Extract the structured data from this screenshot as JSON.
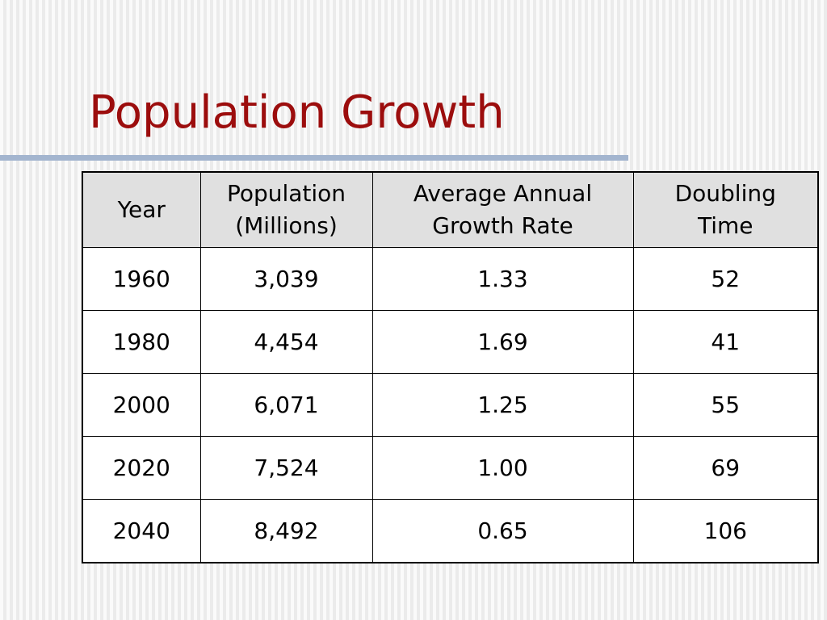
{
  "slide": {
    "title": "Population Growth"
  },
  "table": {
    "headers": [
      [
        "Year"
      ],
      [
        "Population",
        "(Millions)"
      ],
      [
        "Average Annual",
        "Growth Rate"
      ],
      [
        "Doubling",
        "Time"
      ]
    ],
    "rows": [
      [
        "1960",
        "3,039",
        "1.33",
        "52"
      ],
      [
        "1980",
        "4,454",
        "1.69",
        "41"
      ],
      [
        "2000",
        "6,071",
        "1.25",
        "55"
      ],
      [
        "2020",
        "7,524",
        "1.00",
        "69"
      ],
      [
        "2040",
        "8,492",
        "0.65",
        "106"
      ]
    ]
  },
  "colors": {
    "title": "#9c0d0d",
    "rule": "#a3b5cf",
    "header_fill": "#e0e0e0",
    "border": "#000000"
  }
}
